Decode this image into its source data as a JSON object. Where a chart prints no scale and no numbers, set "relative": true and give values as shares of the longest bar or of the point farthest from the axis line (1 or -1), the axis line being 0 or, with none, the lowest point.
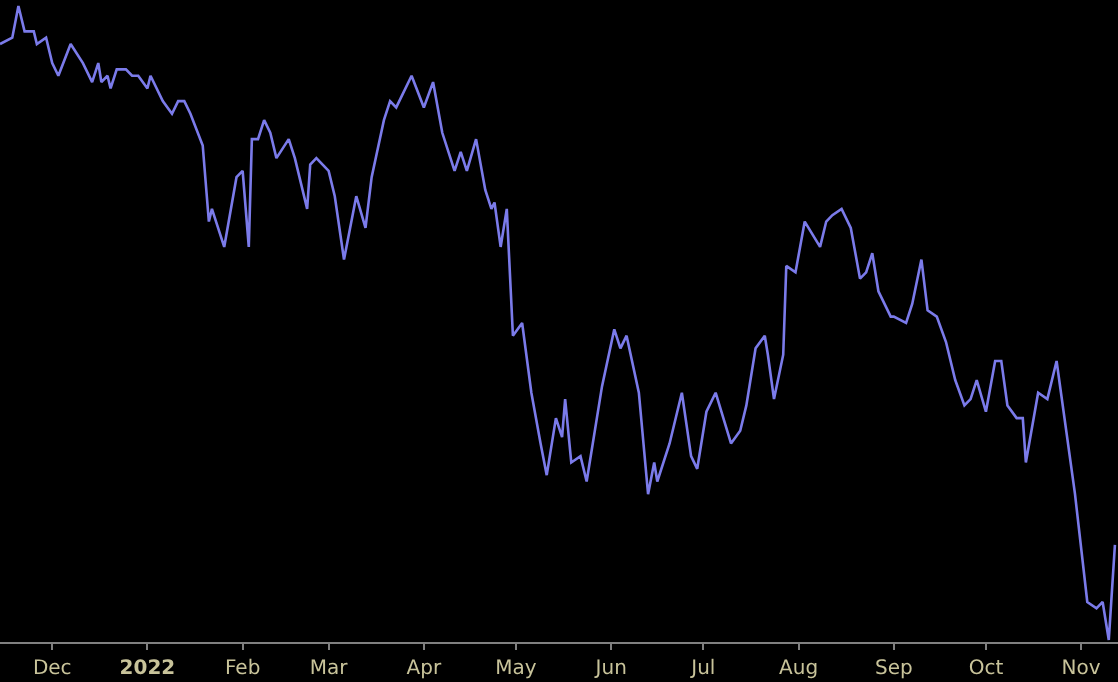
{
  "chart_data": {
    "type": "line",
    "relative": true,
    "grid": false,
    "marker": "none",
    "line_style": "solid",
    "xlim": [
      "2021-11-14",
      "2022-11-13"
    ],
    "xticks": [
      {
        "value": "2021-12-01",
        "label": "Dec"
      },
      {
        "value": "2022-01-01",
        "label": "2022"
      },
      {
        "value": "2022-02-01",
        "label": "Feb"
      },
      {
        "value": "2022-03-01",
        "label": "Mar"
      },
      {
        "value": "2022-04-01",
        "label": "Apr"
      },
      {
        "value": "2022-05-01",
        "label": "May"
      },
      {
        "value": "2022-06-01",
        "label": "Jun"
      },
      {
        "value": "2022-07-01",
        "label": "Jul"
      },
      {
        "value": "2022-08-01",
        "label": "Aug"
      },
      {
        "value": "2022-09-01",
        "label": "Sep"
      },
      {
        "value": "2022-10-01",
        "label": "Oct"
      },
      {
        "value": "2022-11-01",
        "label": "Nov"
      }
    ],
    "x": [
      "2021-11-14",
      "2021-11-18",
      "2021-11-20",
      "2021-11-22",
      "2021-11-25",
      "2021-11-26",
      "2021-11-29",
      "2021-12-01",
      "2021-12-03",
      "2021-12-07",
      "2021-12-11",
      "2021-12-14",
      "2021-12-16",
      "2021-12-17",
      "2021-12-19",
      "2021-12-20",
      "2021-12-22",
      "2021-12-25",
      "2021-12-27",
      "2021-12-29",
      "2022-01-01",
      "2022-01-02",
      "2022-01-06",
      "2022-01-09",
      "2022-01-11",
      "2022-01-13",
      "2022-01-15",
      "2022-01-19",
      "2022-01-21",
      "2022-01-22",
      "2022-01-26",
      "2022-01-30",
      "2022-02-01",
      "2022-02-03",
      "2022-02-04",
      "2022-02-06",
      "2022-02-08",
      "2022-02-10",
      "2022-02-12",
      "2022-02-16",
      "2022-02-18",
      "2022-02-22",
      "2022-02-23",
      "2022-02-25",
      "2022-03-01",
      "2022-03-03",
      "2022-03-06",
      "2022-03-10",
      "2022-03-13",
      "2022-03-15",
      "2022-03-19",
      "2022-03-21",
      "2022-03-23",
      "2022-03-28",
      "2022-04-01",
      "2022-04-04",
      "2022-04-07",
      "2022-04-11",
      "2022-04-13",
      "2022-04-15",
      "2022-04-18",
      "2022-04-21",
      "2022-04-23",
      "2022-04-24",
      "2022-04-26",
      "2022-04-28",
      "2022-04-30",
      "2022-05-03",
      "2022-05-06",
      "2022-05-09",
      "2022-05-11",
      "2022-05-14",
      "2022-05-16",
      "2022-05-17",
      "2022-05-19",
      "2022-05-22",
      "2022-05-24",
      "2022-05-29",
      "2022-06-02",
      "2022-06-04",
      "2022-06-06",
      "2022-06-10",
      "2022-06-13",
      "2022-06-15",
      "2022-06-16",
      "2022-06-20",
      "2022-06-24",
      "2022-06-27",
      "2022-06-29",
      "2022-07-02",
      "2022-07-05",
      "2022-07-10",
      "2022-07-13",
      "2022-07-15",
      "2022-07-18",
      "2022-07-21",
      "2022-07-22",
      "2022-07-24",
      "2022-07-27",
      "2022-07-28",
      "2022-07-31",
      "2022-08-03",
      "2022-08-08",
      "2022-08-10",
      "2022-08-12",
      "2022-08-15",
      "2022-08-18",
      "2022-08-21",
      "2022-08-23",
      "2022-08-25",
      "2022-08-27",
      "2022-08-31",
      "2022-09-01",
      "2022-09-05",
      "2022-09-07",
      "2022-09-10",
      "2022-09-12",
      "2022-09-15",
      "2022-09-18",
      "2022-09-21",
      "2022-09-24",
      "2022-09-26",
      "2022-09-28",
      "2022-10-01",
      "2022-10-04",
      "2022-10-06",
      "2022-10-08",
      "2022-10-11",
      "2022-10-13",
      "2022-10-14",
      "2022-10-18",
      "2022-10-21",
      "2022-10-24",
      "2022-10-30",
      "2022-11-03",
      "2022-11-06",
      "2022-11-08",
      "2022-11-10",
      "2022-11-12"
    ],
    "series": [
      {
        "color": "#7b7bea",
        "values": [
          0.94,
          0.95,
          1.0,
          0.96,
          0.96,
          0.94,
          0.95,
          0.91,
          0.89,
          0.94,
          0.91,
          0.88,
          0.91,
          0.88,
          0.89,
          0.87,
          0.9,
          0.9,
          0.89,
          0.89,
          0.87,
          0.89,
          0.85,
          0.83,
          0.85,
          0.85,
          0.83,
          0.78,
          0.66,
          0.68,
          0.62,
          0.73,
          0.74,
          0.62,
          0.79,
          0.79,
          0.82,
          0.8,
          0.76,
          0.79,
          0.76,
          0.68,
          0.75,
          0.76,
          0.74,
          0.7,
          0.6,
          0.7,
          0.65,
          0.73,
          0.82,
          0.85,
          0.84,
          0.89,
          0.84,
          0.88,
          0.8,
          0.74,
          0.77,
          0.74,
          0.79,
          0.71,
          0.68,
          0.69,
          0.62,
          0.68,
          0.48,
          0.5,
          0.39,
          0.31,
          0.26,
          0.35,
          0.32,
          0.38,
          0.28,
          0.29,
          0.25,
          0.4,
          0.49,
          0.46,
          0.48,
          0.39,
          0.23,
          0.28,
          0.25,
          0.31,
          0.39,
          0.29,
          0.27,
          0.36,
          0.39,
          0.31,
          0.33,
          0.37,
          0.46,
          0.48,
          0.45,
          0.38,
          0.45,
          0.59,
          0.58,
          0.66,
          0.62,
          0.66,
          0.67,
          0.68,
          0.65,
          0.57,
          0.58,
          0.61,
          0.55,
          0.51,
          0.51,
          0.5,
          0.53,
          0.6,
          0.52,
          0.51,
          0.47,
          0.41,
          0.37,
          0.38,
          0.41,
          0.36,
          0.44,
          0.44,
          0.37,
          0.35,
          0.35,
          0.28,
          0.39,
          0.38,
          0.44,
          0.23,
          0.06,
          0.05,
          0.06,
          0.0,
          0.15
        ]
      }
    ]
  }
}
